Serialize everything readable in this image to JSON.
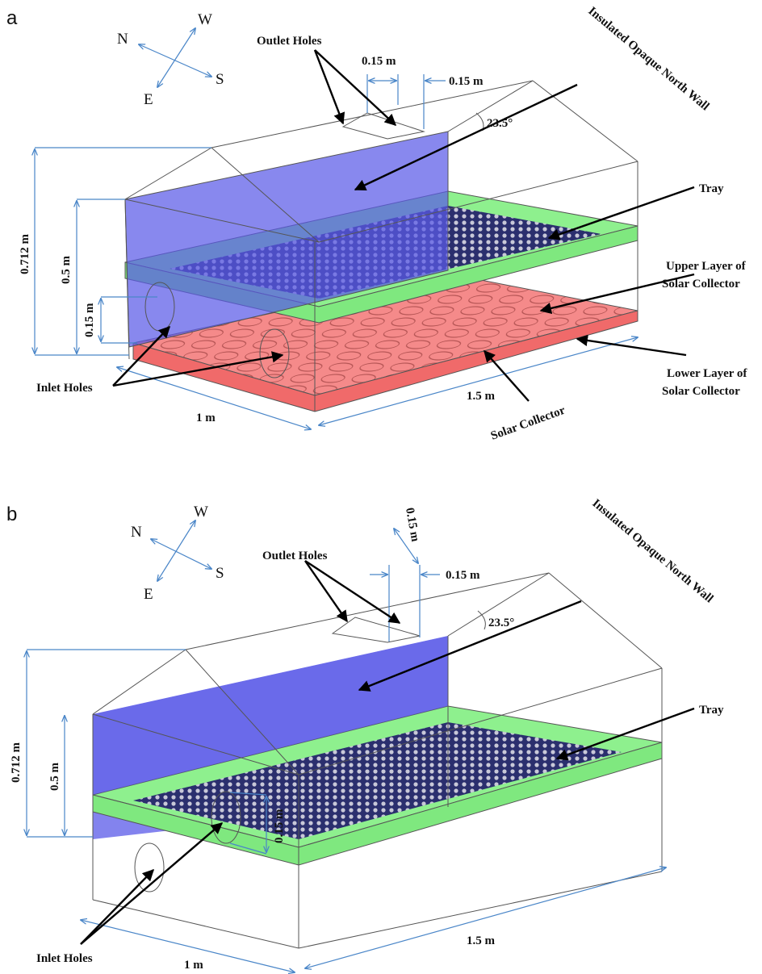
{
  "panels": [
    {
      "label": "a",
      "compass": {
        "n": "N",
        "w": "W",
        "s": "S",
        "e": "E"
      },
      "outlet_holes": "Outlet Holes",
      "outlet_hole_width": "0.15 m",
      "outlet_hole_offset": "0.15 m",
      "roof_angle": "23.5°",
      "north_wall": "Insulated Opaque North Wall",
      "tray": "Tray",
      "upper_layer": [
        "Upper Layer of",
        "Solar Collector"
      ],
      "lower_layer": [
        "Lower Layer of",
        "Solar Collector"
      ],
      "solar_collector": "Solar Collector",
      "length": "1.5 m",
      "width": "1 m",
      "inlet_holes": "Inlet Holes",
      "total_height": "0.712 m",
      "wall_height": "0.5 m",
      "inlet_height": "0.15 m"
    },
    {
      "label": "b",
      "compass": {
        "n": "N",
        "w": "W",
        "s": "S",
        "e": "E"
      },
      "outlet_holes": "Outlet Holes",
      "outlet_hole_length": "0.15 m",
      "outlet_hole_offset": "0.15 m",
      "roof_angle": "23.5°",
      "north_wall": "Insulated Opaque North Wall",
      "tray": "Tray",
      "length": "1.5 m",
      "width": "1 m",
      "inlet_holes": "Inlet Holes",
      "total_height": "0.712 m",
      "wall_height": "0.5 m",
      "inlet_height": "0.15 m"
    }
  ]
}
